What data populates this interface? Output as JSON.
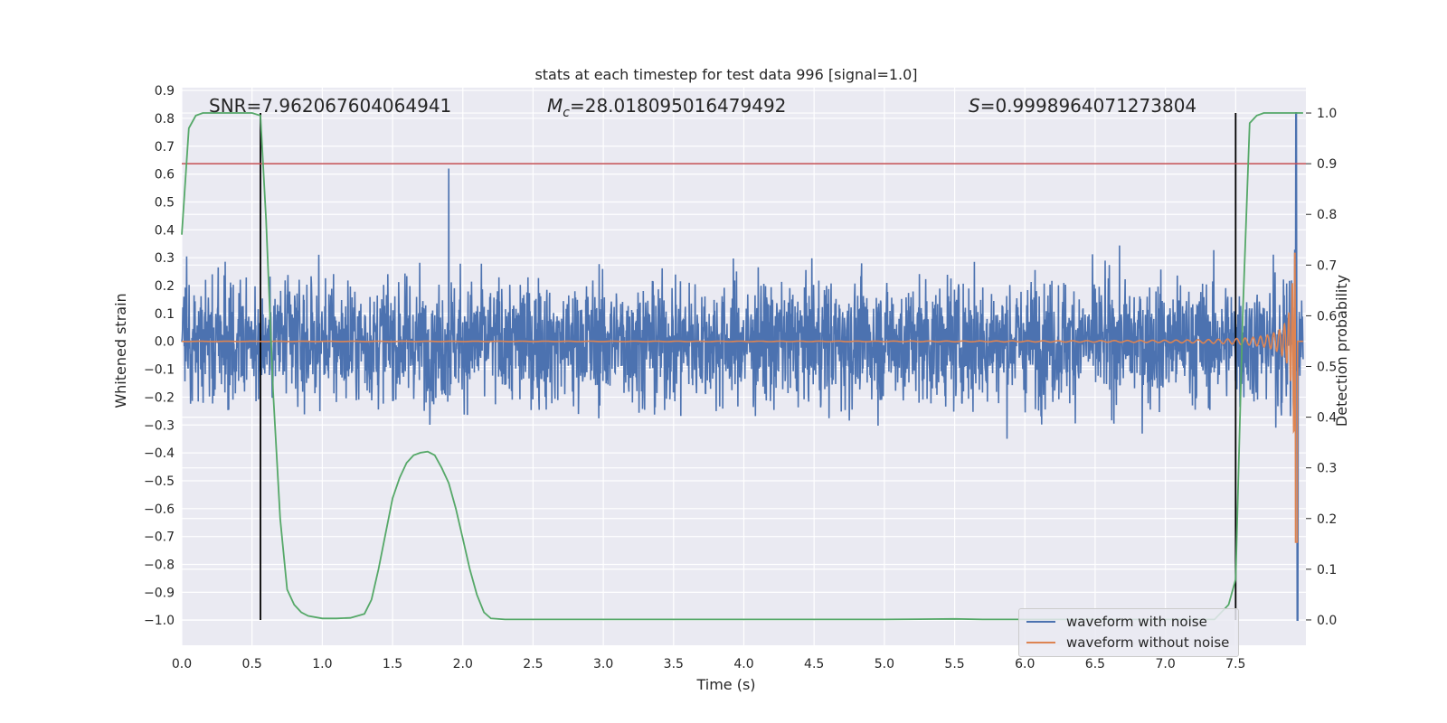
{
  "chart_data": {
    "type": "line",
    "title": "stats at each timestep for test data 996 [signal=1.0]",
    "xlabel": "Time (s)",
    "ylabel": "Whitened strain",
    "y2label": "Detection probability",
    "xlim": [
      0.0,
      8.0
    ],
    "ylim": [
      -1.09,
      0.91
    ],
    "y2lim": [
      -0.05,
      1.05
    ],
    "x_ticks": [
      "0.0",
      "0.5",
      "1.0",
      "1.5",
      "2.0",
      "2.5",
      "3.0",
      "3.5",
      "4.0",
      "4.5",
      "5.0",
      "5.5",
      "6.0",
      "6.5",
      "7.0",
      "7.5"
    ],
    "y_ticks": [
      "0.9",
      "0.8",
      "0.7",
      "0.6",
      "0.5",
      "0.4",
      "0.3",
      "0.2",
      "0.1",
      "0.0",
      "−0.1",
      "−0.2",
      "−0.3",
      "−0.4",
      "−0.5",
      "−0.6",
      "−0.7",
      "−0.8",
      "−0.9",
      "−1.0"
    ],
    "y2_ticks": [
      "1.0",
      "0.9",
      "0.8",
      "0.7",
      "0.6",
      "0.5",
      "0.4",
      "0.3",
      "0.2",
      "0.1",
      "0.0"
    ],
    "grid": true,
    "legend_position": "lower-right",
    "annotations": {
      "snr": "SNR=7.962067604064941",
      "mc": "=28.018095016479492",
      "s": "=0.9998964071273804"
    },
    "threshold_line": {
      "axis": "y2",
      "value": 0.9,
      "color": "#c44e52"
    },
    "vertical_lines": [
      0.56,
      7.5
    ],
    "series": [
      {
        "name": "waveform with noise",
        "axis": "y",
        "color": "#4c72b0",
        "description_envelope": "Gaussian-like noise, mostly within ±0.3, peaks near 0.62 at t=1.9 and 0.82 near t=7.93"
      },
      {
        "name": "waveform without noise",
        "axis": "y",
        "color": "#dd8452",
        "chirp": {
          "t_merge": 7.93,
          "amp_start": 0.002,
          "amp_peak": 0.35,
          "min_at_merge": -0.72
        }
      },
      {
        "name": "detection probability",
        "axis": "y2",
        "color": "#55a868",
        "x": [
          0.0,
          0.05,
          0.1,
          0.15,
          0.2,
          0.3,
          0.4,
          0.5,
          0.56,
          0.6,
          0.65,
          0.7,
          0.75,
          0.8,
          0.85,
          0.9,
          1.0,
          1.1,
          1.2,
          1.25,
          1.3,
          1.35,
          1.4,
          1.45,
          1.5,
          1.55,
          1.6,
          1.65,
          1.7,
          1.75,
          1.8,
          1.85,
          1.9,
          1.95,
          2.0,
          2.05,
          2.1,
          2.15,
          2.2,
          2.3,
          2.5,
          3.0,
          4.0,
          5.0,
          5.5,
          5.7,
          6.0,
          7.0,
          7.35,
          7.45,
          7.5,
          7.55,
          7.6,
          7.65,
          7.7,
          7.75,
          7.8,
          7.85,
          7.9,
          7.95,
          8.0
        ],
        "values": [
          0.76,
          0.97,
          0.995,
          1.0,
          1.0,
          1.0,
          1.0,
          1.0,
          0.995,
          0.79,
          0.45,
          0.2,
          0.06,
          0.03,
          0.015,
          0.008,
          0.003,
          0.003,
          0.004,
          0.008,
          0.012,
          0.04,
          0.1,
          0.17,
          0.24,
          0.28,
          0.31,
          0.325,
          0.33,
          0.332,
          0.325,
          0.3,
          0.27,
          0.22,
          0.16,
          0.1,
          0.05,
          0.015,
          0.003,
          0.001,
          0.001,
          0.001,
          0.001,
          0.001,
          0.002,
          0.001,
          0.001,
          0.001,
          0.001,
          0.03,
          0.08,
          0.6,
          0.98,
          0.995,
          1.0,
          1.0,
          1.0,
          1.0,
          1.0,
          1.0,
          1.0
        ]
      }
    ]
  }
}
